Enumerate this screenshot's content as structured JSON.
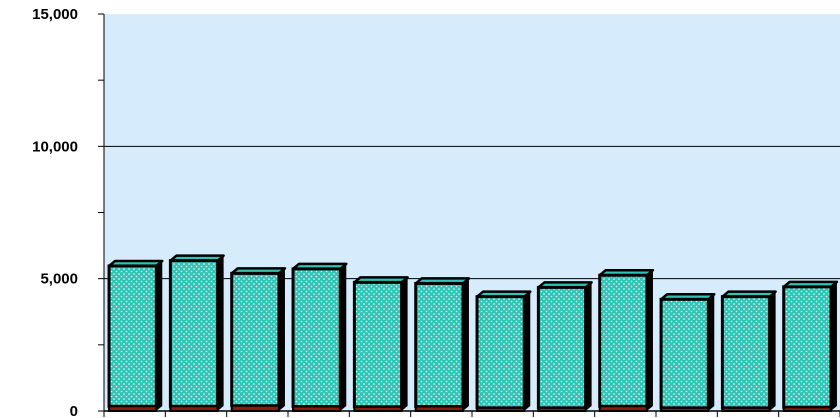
{
  "chart_data": {
    "type": "bar",
    "title": "",
    "xlabel": "",
    "ylabel": "",
    "ylim": [
      0,
      15000
    ],
    "yticks": [
      0,
      5000,
      10000,
      15000
    ],
    "ytick_labels": [
      "0",
      "5,000",
      "10,000",
      "15,000"
    ],
    "minor_ytick_step": 2500,
    "grid": "horizontal major lines",
    "legend": "none",
    "categories": [
      "",
      "",
      "",
      "",
      "",
      "",
      "",
      "",
      "",
      "",
      "",
      ""
    ],
    "series": [
      {
        "values": [
          180,
          180,
          200,
          170,
          160,
          170,
          120,
          120,
          180,
          120,
          120,
          140
        ],
        "color": "#8b1a0e"
      },
      {
        "values": [
          5300,
          5500,
          5000,
          5200,
          4700,
          4650,
          4200,
          4550,
          4950,
          4100,
          4200,
          4550
        ],
        "color": "#2ec4b6"
      }
    ],
    "colors": {
      "plot_background": "#d6ecfc",
      "bar_fill": "#2ec4b6",
      "bar_dots": "#ffffff",
      "bar_outline": "#000000",
      "base_segment": "#8b1a0e",
      "gridline": "#000000"
    }
  }
}
